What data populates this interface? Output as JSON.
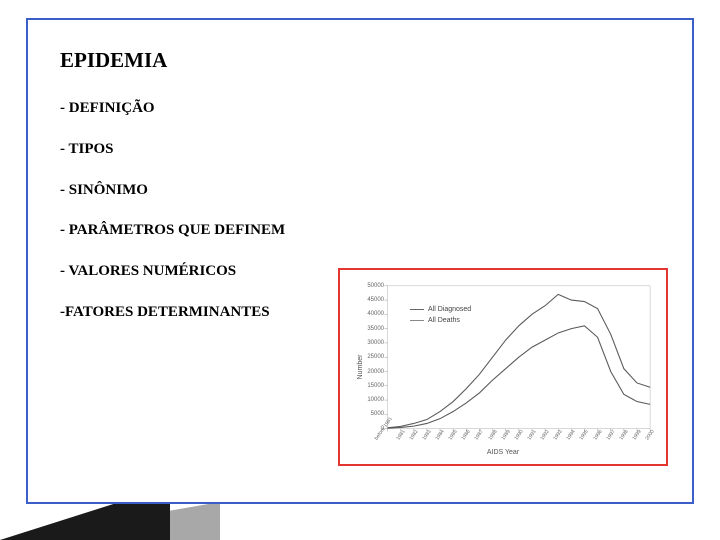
{
  "title": "EPIDEMIA",
  "bullets": [
    "- DEFINIÇÃO",
    "- TIPOS",
    "- SINÔNIMO",
    "- PARÂMETROS QUE DEFINEM",
    "- VALORES NUMÉRICOS",
    "-FATORES DETERMINANTES"
  ],
  "chart": {
    "type": "line",
    "border_color": "#e53530",
    "background_color": "#ffffff",
    "ylabel": "Number",
    "xlabel": "AIDS Year",
    "title_fontsize": 7,
    "label_fontsize": 7,
    "tick_fontsize": 6,
    "line_color": "#5a5a5a",
    "line_width": 1.1,
    "grid_color": "#e8e8e8",
    "ylim": [
      0,
      50000
    ],
    "yticks": [
      0,
      5000,
      10000,
      15000,
      20000,
      25000,
      30000,
      35000,
      40000,
      45000,
      50000
    ],
    "xlim": [
      0,
      21
    ],
    "xtick_labels": [
      "before 1981",
      "1981",
      "1982",
      "1983",
      "1984",
      "1985",
      "1986",
      "1987",
      "1988",
      "1989",
      "1990",
      "1991",
      "1992",
      "1993",
      "1994",
      "1995",
      "1996",
      "1997",
      "1998",
      "1999",
      "2000"
    ],
    "legend": [
      {
        "label": "All Diagnosed",
        "style": "solid"
      },
      {
        "label": "All Deaths",
        "style": "solid"
      }
    ],
    "series": [
      {
        "name": "All Diagnosed",
        "values": [
          300,
          800,
          1800,
          3200,
          6000,
          9500,
          14000,
          19000,
          25000,
          31000,
          36000,
          40000,
          43000,
          47000,
          45000,
          44500,
          42000,
          33000,
          21000,
          16000,
          14500
        ]
      },
      {
        "name": "All Deaths",
        "values": [
          150,
          400,
          900,
          1800,
          3500,
          6000,
          9000,
          12500,
          17000,
          21000,
          25000,
          28500,
          31000,
          33500,
          35000,
          36000,
          32000,
          20000,
          12000,
          9500,
          8500
        ]
      }
    ]
  },
  "slide_border_color": "#3b5fc7"
}
